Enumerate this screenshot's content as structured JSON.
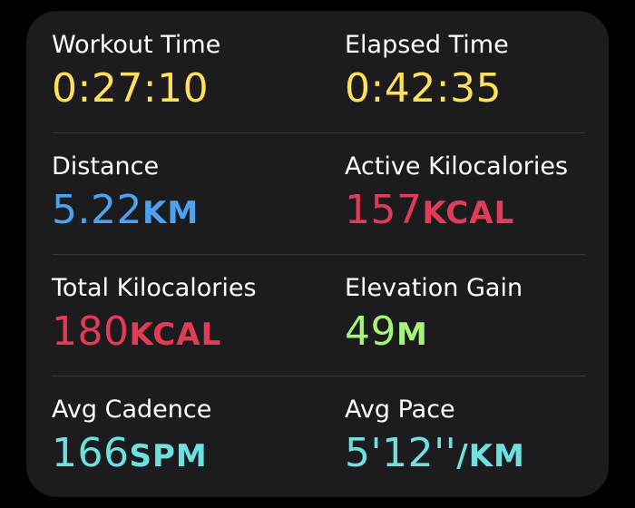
{
  "colors": {
    "time": "#ffe05c",
    "distance": "#4aa3f0",
    "calories": "#e23b57",
    "elevation": "#a6f27a",
    "cadence": "#6fe0e0"
  },
  "metrics": [
    {
      "label": "Workout Time",
      "value": "0:27:10",
      "unit": ""
    },
    {
      "label": "Elapsed Time",
      "value": "0:42:35",
      "unit": ""
    },
    {
      "label": "Distance",
      "value": "5.22",
      "unit": "KM"
    },
    {
      "label": "Active Kilocalories",
      "value": "157",
      "unit": "KCAL"
    },
    {
      "label": "Total Kilocalories",
      "value": "180",
      "unit": "KCAL"
    },
    {
      "label": "Elevation Gain",
      "value": "49",
      "unit": "M"
    },
    {
      "label": "Avg Cadence",
      "value": "166",
      "unit": "SPM"
    },
    {
      "label": "Avg Pace",
      "value": "5'12''",
      "unit": "/KM"
    }
  ]
}
